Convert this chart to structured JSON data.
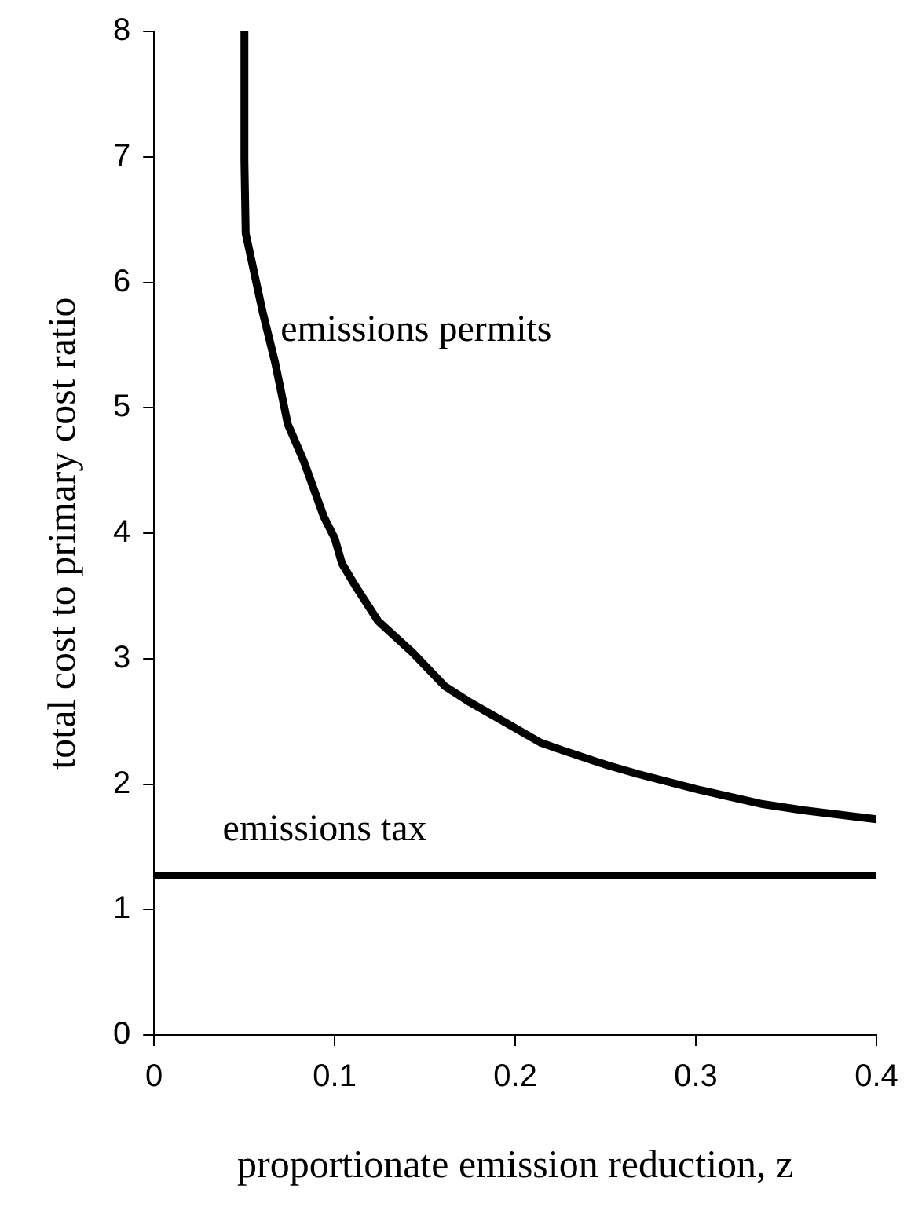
{
  "chart_data": {
    "type": "line",
    "xlabel": "proportionate emission reduction, z",
    "ylabel": "total cost to primary cost ratio",
    "xlim": [
      0,
      0.4
    ],
    "xticks": [
      0,
      0.1,
      0.2,
      0.3,
      0.4
    ],
    "ylim": [
      0,
      8
    ],
    "yticks": [
      0,
      1,
      2,
      3,
      4,
      5,
      6,
      7,
      8
    ],
    "marker": "none",
    "line_style": "solid",
    "series": [
      {
        "color": "#000000",
        "x": [
          0.05,
          0.05,
          0.0507,
          0.06,
          0.067,
          0.074,
          0.083,
          0.094,
          0.1,
          0.104,
          0.111,
          0.124,
          0.143,
          0.161,
          0.174,
          0.191,
          0.214,
          0.226,
          0.251,
          0.268,
          0.303,
          0.337,
          0.36,
          0.4
        ],
        "values": [
          8,
          6.97,
          6.39,
          5.77,
          5.36,
          4.87,
          4.57,
          4.13,
          3.96,
          3.76,
          3.59,
          3.3,
          3.05,
          2.78,
          2.66,
          2.52,
          2.33,
          2.27,
          2.15,
          2.08,
          1.95,
          1.84,
          1.79,
          1.72
        ]
      },
      {
        "color": "#000000",
        "x": [
          0,
          0.4
        ],
        "values": [
          1.27,
          1.27
        ]
      }
    ],
    "annotations": [
      {
        "text": "emissions permits",
        "x": 0.07,
        "y": 5.25
      },
      {
        "text": "emissions tax",
        "x": 0.038,
        "y": 1.27
      }
    ]
  }
}
